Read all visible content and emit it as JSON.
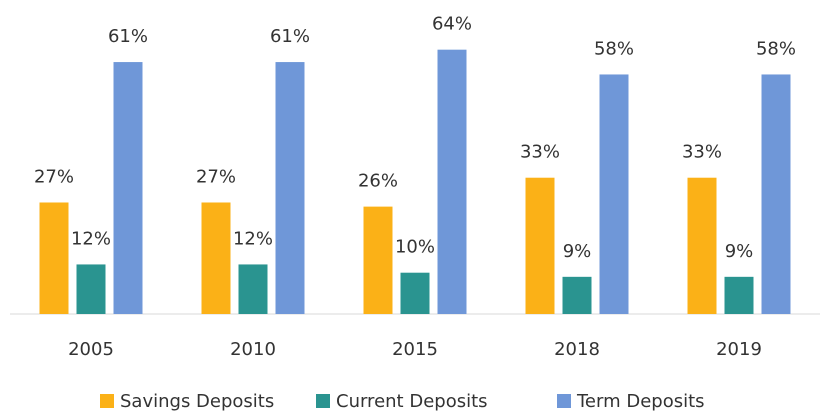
{
  "chart_data": {
    "type": "bar",
    "categories": [
      "2005",
      "2010",
      "2015",
      "2018",
      "2019"
    ],
    "series": [
      {
        "name": "Savings Deposits",
        "color": "#fbb117",
        "values": [
          27,
          27,
          26,
          33,
          33
        ],
        "value_labels": [
          "27%",
          "27%",
          "26%",
          "33%",
          "33%"
        ]
      },
      {
        "name": "Current Deposits",
        "color": "#2a9490",
        "values": [
          12,
          12,
          10,
          9,
          9
        ],
        "value_labels": [
          "12%",
          "12%",
          "10%",
          "9%",
          "9%"
        ]
      },
      {
        "name": "Term Deposits",
        "color": "#6f97d8",
        "values": [
          61,
          61,
          64,
          58,
          58
        ],
        "value_labels": [
          "61%",
          "61%",
          "64%",
          "58%",
          "58%"
        ]
      }
    ],
    "legend": "bottom"
  }
}
